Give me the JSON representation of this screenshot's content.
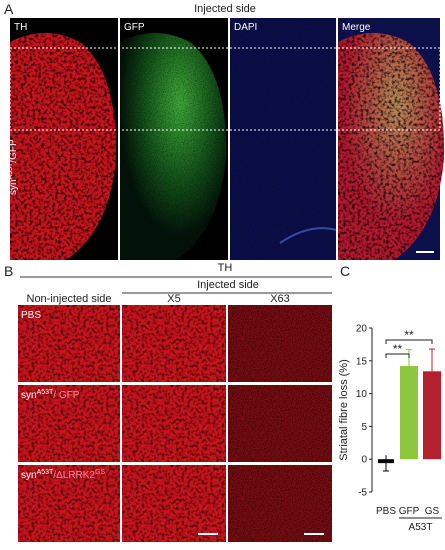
{
  "figure": {
    "panel_a": {
      "letter": "A",
      "title": "Injected side",
      "channels": [
        "TH",
        "GFP",
        "DAPI",
        "Merge"
      ],
      "row_label": {
        "base": "syn",
        "sup": "A53T",
        "rest": "/GFP"
      }
    },
    "panel_b": {
      "letter": "B",
      "title": "TH",
      "subtitle": "Injected side",
      "columns": [
        "Non-injected side",
        "X5",
        "X63"
      ],
      "rows": [
        {
          "base": "PBS"
        },
        {
          "base": "syn",
          "sup": "A53T",
          "rest": "/ GFP"
        },
        {
          "base": "syn",
          "sup": "A53T",
          "rest": "/ΔLRRK2",
          "sup2": "GS"
        }
      ]
    },
    "panel_c": {
      "letter": "C"
    }
  },
  "chart_data": {
    "type": "bar",
    "ylabel": "Striatal fibre loss (%)",
    "categories": [
      "PBS",
      "GFP",
      "GS"
    ],
    "values": [
      -0.6,
      14.2,
      13.4
    ],
    "errors": [
      1.2,
      2.5,
      3.4
    ],
    "colors": [
      "#000000",
      "#8dc63f",
      "#b3202e"
    ],
    "ylim": [
      -5,
      20
    ],
    "yticks": [
      -5,
      0,
      5,
      10,
      15,
      20
    ],
    "group_label": "A53T",
    "significance": [
      {
        "label": "**",
        "from": 0,
        "to": 1
      },
      {
        "label": "**",
        "from": 0,
        "to": 2
      }
    ]
  }
}
